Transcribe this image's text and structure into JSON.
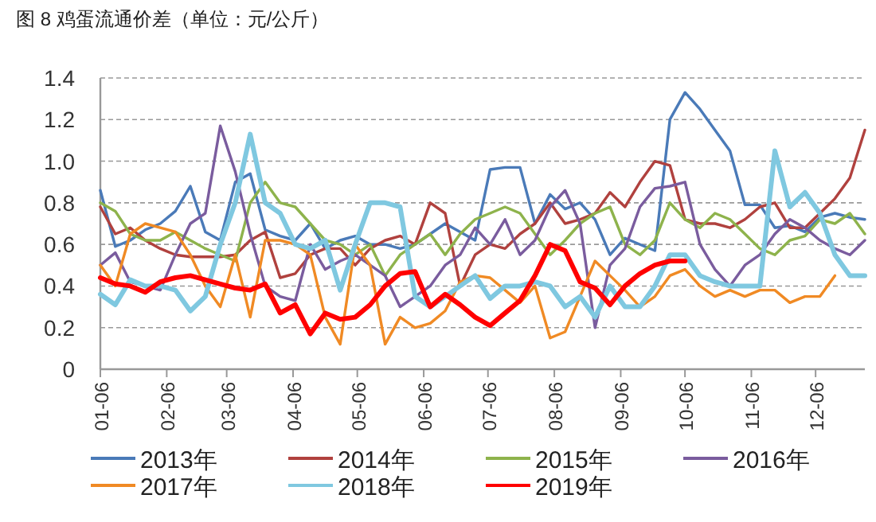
{
  "chart_data": {
    "type": "line",
    "title": "图 8 鸡蛋流通价差（单位：元/公斤）",
    "x": [
      "--01-06",
      "--01-13",
      "--01-20",
      "--01-27",
      "--02-03",
      "--02-10",
      "--02-17",
      "--02-24",
      "--03-03",
      "--03-10",
      "--03-17",
      "--03-24",
      "--03-31",
      "--04-07",
      "--04-14",
      "--04-21",
      "--04-28",
      "--05-05",
      "--05-12",
      "--05-19",
      "--05-26",
      "--06-02",
      "--06-09",
      "--06-16",
      "--06-23",
      "--06-30",
      "--07-07",
      "--07-14",
      "--07-21",
      "--07-28",
      "--08-04",
      "--08-11",
      "--08-18",
      "--08-25",
      "--09-01",
      "--09-08",
      "--09-15",
      "--09-22",
      "--09-29",
      "--10-06",
      "--10-13",
      "--10-20",
      "--10-27",
      "--11-03",
      "--11-10",
      "--11-17",
      "--11-24",
      "--12-01",
      "--12-08",
      "--12-15",
      "--12-22",
      "--12-29"
    ],
    "xlim": [
      "--01-06",
      "--12-29"
    ],
    "xticks": [
      {
        "value": "--01-06",
        "label": "01-06"
      },
      {
        "value": "--02-06",
        "label": "02-06"
      },
      {
        "value": "--03-06",
        "label": "03-06"
      },
      {
        "value": "--04-06",
        "label": "04-06"
      },
      {
        "value": "--05-06",
        "label": "05-06"
      },
      {
        "value": "--06-06",
        "label": "06-06"
      },
      {
        "value": "--07-06",
        "label": "07-06"
      },
      {
        "value": "--08-06",
        "label": "08-06"
      },
      {
        "value": "--09-06",
        "label": "09-06"
      },
      {
        "value": "--10-06",
        "label": "10-06"
      },
      {
        "value": "--11-06",
        "label": "11-06"
      },
      {
        "value": "--12-06",
        "label": "12-06"
      }
    ],
    "ylim": [
      0,
      1.4
    ],
    "yticks": [
      0,
      {
        "value": 0.2,
        "label": "0.2"
      },
      {
        "value": 0.4,
        "label": "0.4"
      },
      {
        "value": 0.6,
        "label": "0.6"
      },
      {
        "value": 0.8,
        "label": "0.8"
      },
      {
        "value": 1,
        "label": "1.0"
      },
      {
        "value": 1.2,
        "label": "1.2"
      },
      {
        "value": 1.4,
        "label": "1.4"
      }
    ],
    "grid": "y",
    "legend": "bottom",
    "series": [
      {
        "name": "2013年",
        "color": "#4a7ab8",
        "values": [
          0.86,
          0.59,
          0.62,
          0.67,
          0.7,
          0.76,
          0.88,
          0.66,
          0.62,
          0.9,
          0.94,
          0.67,
          0.64,
          0.62,
          0.7,
          0.58,
          0.62,
          0.64,
          0.6,
          0.6,
          0.58,
          0.6,
          0.65,
          0.7,
          0.66,
          0.62,
          0.96,
          0.97,
          0.97,
          0.7,
          0.84,
          0.77,
          0.8,
          0.72,
          0.55,
          0.63,
          0.6,
          0.57,
          1.2,
          1.33,
          1.25,
          1.15,
          1.05,
          0.79,
          0.79,
          0.68,
          0.69,
          0.66,
          0.73,
          0.75,
          0.73,
          0.72
        ]
      },
      {
        "name": "2014年",
        "color": "#b0413e",
        "values": [
          0.78,
          0.65,
          0.68,
          0.62,
          0.58,
          0.55,
          0.54,
          0.54,
          0.54,
          0.55,
          0.62,
          0.66,
          0.44,
          0.46,
          0.55,
          0.58,
          0.58,
          0.5,
          0.58,
          0.62,
          0.64,
          0.6,
          0.8,
          0.75,
          0.4,
          0.55,
          0.6,
          0.58,
          0.65,
          0.7,
          0.8,
          0.7,
          0.72,
          0.75,
          0.85,
          0.78,
          0.9,
          1.0,
          0.98,
          0.72,
          0.7,
          0.7,
          0.68,
          0.72,
          0.78,
          0.8,
          0.68,
          0.68,
          0.75,
          0.82,
          0.92,
          1.15
        ]
      },
      {
        "name": "2015年",
        "color": "#8eb34c",
        "values": [
          0.8,
          0.76,
          0.65,
          0.62,
          0.62,
          0.66,
          0.62,
          0.58,
          0.55,
          0.52,
          0.8,
          0.9,
          0.8,
          0.78,
          0.7,
          0.62,
          0.6,
          0.55,
          0.6,
          0.45,
          0.55,
          0.6,
          0.65,
          0.55,
          0.65,
          0.72,
          0.75,
          0.78,
          0.75,
          0.65,
          0.55,
          0.62,
          0.7,
          0.75,
          0.78,
          0.6,
          0.55,
          0.62,
          0.8,
          0.72,
          0.68,
          0.75,
          0.72,
          0.65,
          0.58,
          0.55,
          0.62,
          0.64,
          0.72,
          0.7,
          0.75,
          0.65
        ]
      },
      {
        "name": "2016年",
        "color": "#7a5c9e",
        "values": [
          0.5,
          0.56,
          0.42,
          0.4,
          0.38,
          0.55,
          0.7,
          0.75,
          1.17,
          0.95,
          0.65,
          0.4,
          0.35,
          0.33,
          0.6,
          0.48,
          0.52,
          0.55,
          0.5,
          0.45,
          0.3,
          0.35,
          0.4,
          0.5,
          0.55,
          0.68,
          0.6,
          0.72,
          0.55,
          0.62,
          0.78,
          0.86,
          0.7,
          0.2,
          0.5,
          0.58,
          0.78,
          0.87,
          0.88,
          0.9,
          0.6,
          0.48,
          0.4,
          0.5,
          0.55,
          0.65,
          0.72,
          0.68,
          0.62,
          0.58,
          0.55,
          0.62
        ]
      },
      {
        "name": "2017年",
        "color": "#f08a24",
        "values": [
          0.5,
          0.4,
          0.65,
          0.7,
          0.68,
          0.66,
          0.55,
          0.4,
          0.3,
          0.55,
          0.25,
          0.62,
          0.62,
          0.6,
          0.55,
          0.25,
          0.12,
          0.6,
          0.5,
          0.12,
          0.25,
          0.2,
          0.22,
          0.28,
          0.42,
          0.45,
          0.44,
          0.38,
          0.32,
          0.4,
          0.15,
          0.18,
          0.35,
          0.52,
          0.45,
          0.38,
          0.3,
          0.35,
          0.45,
          0.48,
          0.4,
          0.35,
          0.38,
          0.35,
          0.38,
          0.38,
          0.32,
          0.35,
          0.35,
          0.45,
          null,
          null
        ]
      },
      {
        "name": "2018年",
        "color": "#7fc8e0",
        "values": [
          0.36,
          0.31,
          0.43,
          0.4,
          0.4,
          0.38,
          0.28,
          0.35,
          0.6,
          0.8,
          1.13,
          0.8,
          0.75,
          0.6,
          0.58,
          0.62,
          0.38,
          0.6,
          0.8,
          0.8,
          0.78,
          0.35,
          0.3,
          0.35,
          0.4,
          0.45,
          0.34,
          0.4,
          0.4,
          0.42,
          0.4,
          0.3,
          0.35,
          0.25,
          0.4,
          0.3,
          0.3,
          0.4,
          0.55,
          0.55,
          0.45,
          0.42,
          0.4,
          0.4,
          0.4,
          1.05,
          0.78,
          0.85,
          0.75,
          0.55,
          0.45,
          0.45
        ]
      },
      {
        "name": "2019年",
        "color": "#ff0000",
        "values": [
          0.44,
          0.41,
          0.4,
          0.37,
          0.42,
          0.44,
          0.45,
          0.43,
          0.41,
          0.39,
          0.38,
          0.41,
          0.27,
          0.31,
          0.17,
          0.27,
          0.24,
          0.25,
          0.31,
          0.4,
          0.46,
          0.47,
          0.3,
          0.36,
          0.31,
          0.25,
          0.21,
          0.27,
          0.33,
          0.45,
          0.6,
          0.57,
          0.42,
          0.39,
          0.31,
          0.4,
          0.46,
          0.5,
          0.52,
          0.52,
          null,
          null,
          null,
          null,
          null,
          null,
          null,
          null,
          null,
          null,
          null,
          null
        ]
      }
    ]
  }
}
